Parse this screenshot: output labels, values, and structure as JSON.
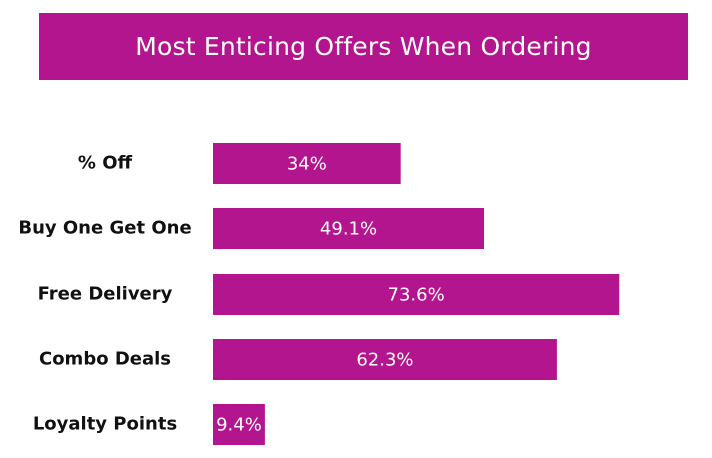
{
  "colors": {
    "accent": "#b3158f",
    "title_text": "#ffffff",
    "label_text": "#111111"
  },
  "chart_data": {
    "type": "bar",
    "orientation": "horizontal",
    "title": "Most Enticing Offers When Ordering",
    "categories": [
      "% Off",
      "Buy One Get One",
      "Free Delivery",
      "Combo Deals",
      "Loyalty Points"
    ],
    "values": [
      34,
      49.1,
      73.6,
      62.3,
      9.4
    ],
    "value_labels": [
      "34%",
      "49.1%",
      "73.6%",
      "62.3%",
      "9.4%"
    ],
    "xlim": [
      0,
      100
    ],
    "grid": false,
    "legend": "none"
  }
}
